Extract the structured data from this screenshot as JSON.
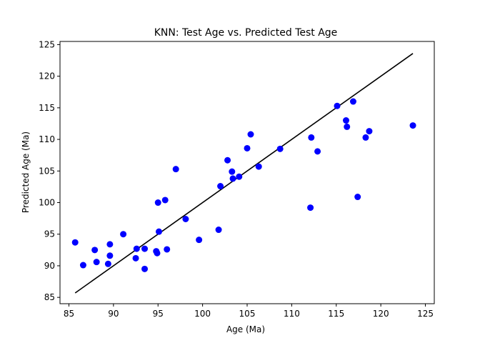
{
  "chart_data": {
    "type": "scatter",
    "title": "KNN: Test Age vs. Predicted Test Age",
    "xlabel": "Age (Ma)",
    "ylabel": "Predicted Age (Ma)",
    "xlim": [
      84,
      126
    ],
    "ylim": [
      84,
      125.5
    ],
    "xticks": [
      85,
      90,
      95,
      100,
      105,
      110,
      115,
      120,
      125
    ],
    "yticks": [
      85,
      90,
      95,
      100,
      105,
      110,
      115,
      120,
      125
    ],
    "grid": false,
    "point_color": "#0000ff",
    "line_color": "#000000",
    "reference_line": {
      "x": [
        85.7,
        123.6
      ],
      "y": [
        85.7,
        123.6
      ]
    },
    "points": [
      [
        85.7,
        93.7
      ],
      [
        86.6,
        90.1
      ],
      [
        87.9,
        92.5
      ],
      [
        88.1,
        90.6
      ],
      [
        89.4,
        90.3
      ],
      [
        89.6,
        93.4
      ],
      [
        89.6,
        91.6
      ],
      [
        91.1,
        95.0
      ],
      [
        92.5,
        91.2
      ],
      [
        92.6,
        92.7
      ],
      [
        93.5,
        92.7
      ],
      [
        93.5,
        89.5
      ],
      [
        94.8,
        92.3
      ],
      [
        94.9,
        92.0
      ],
      [
        95.0,
        100.0
      ],
      [
        95.1,
        95.4
      ],
      [
        95.8,
        100.4
      ],
      [
        96.0,
        92.6
      ],
      [
        97.0,
        105.3
      ],
      [
        98.1,
        97.4
      ],
      [
        99.6,
        94.1
      ],
      [
        101.8,
        95.7
      ],
      [
        102.0,
        102.6
      ],
      [
        102.8,
        106.7
      ],
      [
        103.3,
        104.9
      ],
      [
        103.4,
        103.8
      ],
      [
        104.1,
        104.1
      ],
      [
        105.0,
        108.6
      ],
      [
        105.4,
        110.8
      ],
      [
        106.3,
        105.7
      ],
      [
        108.7,
        108.5
      ],
      [
        112.1,
        99.2
      ],
      [
        112.2,
        110.3
      ],
      [
        112.9,
        108.1
      ],
      [
        115.1,
        115.3
      ],
      [
        116.1,
        113.0
      ],
      [
        116.2,
        112.0
      ],
      [
        116.9,
        116.0
      ],
      [
        117.4,
        100.9
      ],
      [
        118.3,
        110.3
      ],
      [
        118.7,
        111.3
      ],
      [
        123.6,
        112.2
      ]
    ]
  }
}
